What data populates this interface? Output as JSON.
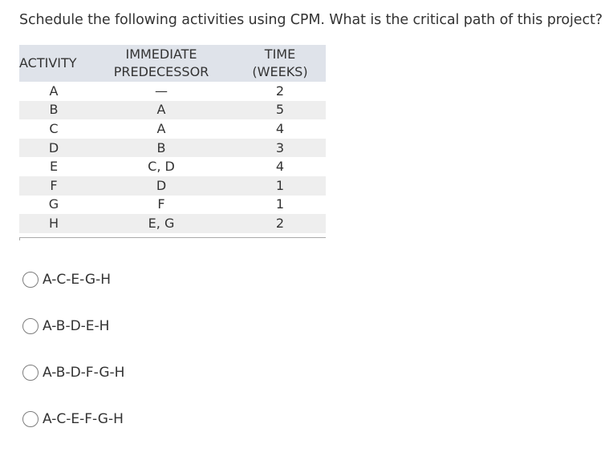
{
  "question": {
    "text": "Schedule the following activities using CPM. What is the critical path of this project?"
  },
  "table": {
    "headers": {
      "activity": "ACTIVITY",
      "predecessor_line1": "IMMEDIATE",
      "predecessor_line2": "PREDECESSOR",
      "time_line1": "TIME",
      "time_line2": "(WEEKS)"
    },
    "rows": [
      {
        "activity": "A",
        "predecessor": "—",
        "time": "2"
      },
      {
        "activity": "B",
        "predecessor": "A",
        "time": "5"
      },
      {
        "activity": "C",
        "predecessor": "A",
        "time": "4"
      },
      {
        "activity": "D",
        "predecessor": "B",
        "time": "3"
      },
      {
        "activity": "E",
        "predecessor": "C, D",
        "time": "4"
      },
      {
        "activity": "F",
        "predecessor": "D",
        "time": "1"
      },
      {
        "activity": "G",
        "predecessor": "F",
        "time": "1"
      },
      {
        "activity": "H",
        "predecessor": "E, G",
        "time": "2"
      }
    ]
  },
  "options": [
    {
      "label": "A-C-E-G-H",
      "selected": false
    },
    {
      "label": "A-B-D-E-H",
      "selected": false
    },
    {
      "label": "A-B-D-F-G-H",
      "selected": false
    },
    {
      "label": "A-C-E-F-G-H",
      "selected": false
    }
  ]
}
